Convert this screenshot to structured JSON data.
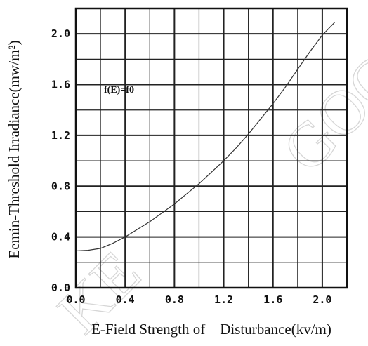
{
  "chart_data": {
    "type": "line",
    "title": "",
    "xlabel": "E-Field Strength of    Disturbance(kv/m)",
    "ylabel": "Eemin-Threshold Irradiance(mw/m²)",
    "xlim": [
      0,
      2.2
    ],
    "ylim": [
      0,
      2.2
    ],
    "x_ticks": [
      0.0,
      0.4,
      0.8,
      1.2,
      1.6,
      2.0
    ],
    "y_ticks": [
      0.0,
      0.4,
      0.8,
      1.2,
      1.6,
      2.0
    ],
    "x_tick_labels": [
      "0.0",
      "0.4",
      "0.8",
      "1.2",
      "1.6",
      "2.0"
    ],
    "y_tick_labels": [
      "0.0",
      "0.4",
      "0.8",
      "1.2",
      "1.6",
      "2.0"
    ],
    "grid": true,
    "minor_step": 0.2,
    "annotation": "f(E)=f0",
    "watermark": [
      "GOO",
      "KE"
    ],
    "series": [
      {
        "color": "#333333",
        "x": [
          0.0,
          0.1,
          0.2,
          0.3,
          0.4,
          0.5,
          0.6,
          0.7,
          0.8,
          0.9,
          1.0,
          1.1,
          1.2,
          1.3,
          1.4,
          1.5,
          1.6,
          1.7,
          1.8,
          1.9,
          2.0,
          2.1
        ],
        "y": [
          0.29,
          0.295,
          0.31,
          0.35,
          0.4,
          0.46,
          0.52,
          0.59,
          0.66,
          0.74,
          0.82,
          0.91,
          1.0,
          1.1,
          1.21,
          1.33,
          1.45,
          1.58,
          1.72,
          1.86,
          1.99,
          2.09
        ]
      }
    ]
  }
}
